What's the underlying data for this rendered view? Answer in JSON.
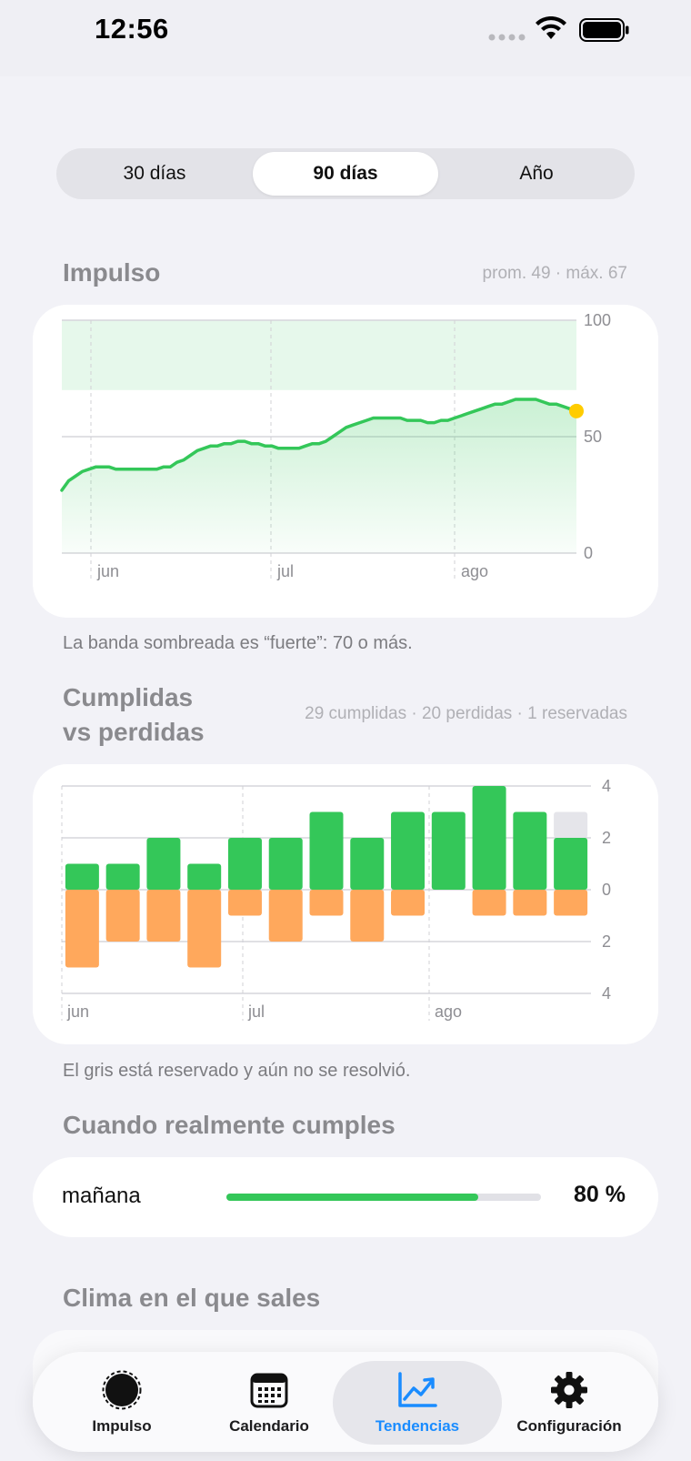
{
  "status_bar": {
    "time": "12:56"
  },
  "segments": [
    {
      "label": "30 días",
      "selected": false
    },
    {
      "label": "90 días",
      "selected": true
    },
    {
      "label": "Año",
      "selected": false
    }
  ],
  "impulso": {
    "title": "Impulso",
    "meta": "prom. 49 · máx. 67",
    "caption": "La banda sombreada es “fuerte”: 70 o más.",
    "chart_data": {
      "type": "area",
      "ylim": [
        0,
        100
      ],
      "y_ticks": [
        "100",
        "50",
        "0"
      ],
      "x_ticks": [
        "jun",
        "jul",
        "ago"
      ],
      "strong_band": [
        70,
        100
      ],
      "values": [
        27,
        31,
        33,
        35,
        36,
        37,
        37,
        37,
        36,
        36,
        36,
        36,
        36,
        36,
        36,
        37,
        37,
        39,
        40,
        42,
        44,
        45,
        46,
        46,
        47,
        47,
        48,
        48,
        47,
        47,
        46,
        46,
        45,
        45,
        45,
        45,
        46,
        47,
        47,
        48,
        50,
        52,
        54,
        55,
        56,
        57,
        58,
        58,
        58,
        58,
        58,
        57,
        57,
        57,
        56,
        56,
        57,
        57,
        58,
        59,
        60,
        61,
        62,
        63,
        64,
        64,
        65,
        66,
        66,
        66,
        66,
        65,
        64,
        64,
        63,
        62,
        61
      ]
    }
  },
  "cumplidas": {
    "title_line1": "Cumplidas",
    "title_line2": "vs perdidas",
    "meta": "29 cumplidas · 20 perdidas · 1 reservadas",
    "caption": "El gris está reservado y aún no se resolvió.",
    "chart_data": {
      "type": "bar",
      "ylim": [
        -4,
        4
      ],
      "y_ticks": [
        "4",
        "2",
        "0",
        "2",
        "4"
      ],
      "x_ticks": [
        "jun",
        "jul",
        "ago"
      ],
      "series": [
        {
          "name": "cumplidas",
          "color": "#34c759",
          "values": [
            1,
            1,
            2,
            1,
            2,
            2,
            3,
            2,
            3,
            3,
            4,
            3,
            2
          ]
        },
        {
          "name": "perdidas",
          "color": "#ffa85c",
          "values": [
            3,
            2,
            2,
            3,
            1,
            2,
            1,
            2,
            1,
            0,
            1,
            1,
            1
          ]
        },
        {
          "name": "reservadas",
          "color": "#e5e5ea",
          "values": [
            0,
            0,
            0,
            0,
            0,
            0,
            0,
            0,
            0,
            0,
            0,
            0,
            1
          ]
        }
      ]
    }
  },
  "cuando": {
    "title": "Cuando realmente cumples",
    "row_label": "mañana",
    "row_value": "80 %",
    "progress": 0.8
  },
  "clima": {
    "title": "Clima en el que sales"
  },
  "tabs": [
    {
      "label": "Impulso",
      "icon": "impulse-icon",
      "active": false
    },
    {
      "label": "Calendario",
      "icon": "calendar-icon",
      "active": false
    },
    {
      "label": "Tendencias",
      "icon": "trend-chart-icon",
      "active": true
    },
    {
      "label": "Configuración",
      "icon": "gear-icon",
      "active": false
    }
  ],
  "colors": {
    "green": "#34c759",
    "orange": "#ffa85c",
    "gray": "#e5e5ea",
    "accent": "#1a8cff",
    "dot": "#ffcc00"
  }
}
